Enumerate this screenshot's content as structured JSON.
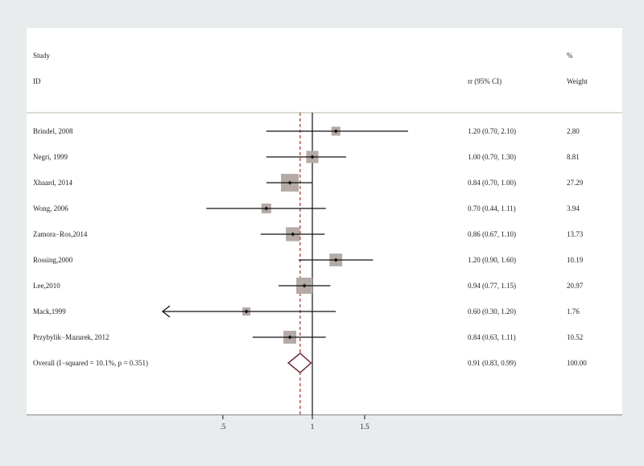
{
  "header": {
    "study_label": "Study",
    "id_label": "ID",
    "ci_label": "rr (95% CI)",
    "pct_label": "%",
    "weight_label": "Weight"
  },
  "chart_data": {
    "type": "forest",
    "effect_measure": "rr (95% CI)",
    "null_value": 1,
    "overall_line": 0.91,
    "x_ticks": [
      {
        "value": 0.5,
        "label": ".5"
      },
      {
        "value": 1,
        "label": "1"
      },
      {
        "value": 1.5,
        "label": "1.5"
      }
    ],
    "studies": [
      {
        "label": "Brindel, 2008",
        "rr": 1.2,
        "lo": 0.7,
        "hi": 2.1,
        "ci_text": "1.20 (0.70, 2.10)",
        "weight": 2.8,
        "weight_text": "2.80",
        "arrow_left": false
      },
      {
        "label": "Negri, 1999",
        "rr": 1.0,
        "lo": 0.7,
        "hi": 1.3,
        "ci_text": "1.00 (0.70, 1.30)",
        "weight": 8.81,
        "weight_text": "8.81",
        "arrow_left": false
      },
      {
        "label": "Xhaard, 2014",
        "rr": 0.84,
        "lo": 0.7,
        "hi": 1.0,
        "ci_text": "0.84 (0.70, 1.00)",
        "weight": 27.29,
        "weight_text": "27.29",
        "arrow_left": false
      },
      {
        "label": "Wong, 2006",
        "rr": 0.7,
        "lo": 0.44,
        "hi": 1.11,
        "ci_text": "0.70 (0.44, 1.11)",
        "weight": 3.94,
        "weight_text": "3.94",
        "arrow_left": false
      },
      {
        "label": "Zamora−Ros,2014",
        "rr": 0.86,
        "lo": 0.67,
        "hi": 1.1,
        "ci_text": "0.86 (0.67, 1.10)",
        "weight": 13.73,
        "weight_text": "13.73",
        "arrow_left": false
      },
      {
        "label": "Rossing,2000",
        "rr": 1.2,
        "lo": 0.9,
        "hi": 1.6,
        "ci_text": "1.20 (0.90, 1.60)",
        "weight": 10.19,
        "weight_text": "10.19",
        "arrow_left": false
      },
      {
        "label": "Lee,2010",
        "rr": 0.94,
        "lo": 0.77,
        "hi": 1.15,
        "ci_text": "0.94 (0.77, 1.15)",
        "weight": 20.97,
        "weight_text": "20.97",
        "arrow_left": false
      },
      {
        "label": "Mack,1999",
        "rr": 0.6,
        "lo": 0.3,
        "hi": 1.2,
        "ci_text": "0.60 (0.30, 1.20)",
        "weight": 1.76,
        "weight_text": "1.76",
        "arrow_left": true
      },
      {
        "label": "Przybylik−Mazurek, 2012",
        "rr": 0.84,
        "lo": 0.63,
        "hi": 1.11,
        "ci_text": "0.84 (0.63, 1.11)",
        "weight": 10.52,
        "weight_text": "10.52",
        "arrow_left": false
      }
    ],
    "overall": {
      "label": "Overall  (I−squared = 10.1%, p = 0.351)",
      "rr": 0.91,
      "lo": 0.83,
      "hi": 0.99,
      "ci_text": "0.91 (0.83, 0.99)",
      "weight_text": "100.00"
    },
    "colors": {
      "box": "#b5aaa6",
      "line": "#111111",
      "dashed": "#a0322f",
      "diamond": "#6b2e38",
      "separator": "#b8b4a4"
    }
  }
}
